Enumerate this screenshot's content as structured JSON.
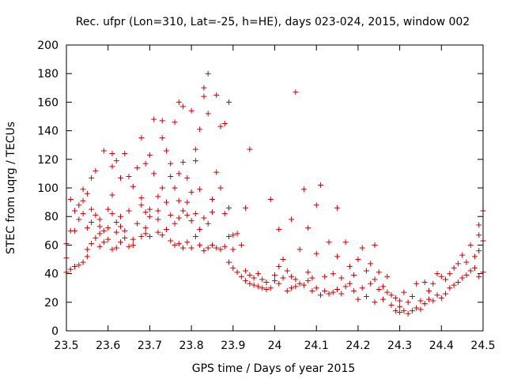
{
  "chart_data": {
    "type": "scatter",
    "title": "Rec. ufpr (Lon=310, Lat=-25, h=HE), days 023-024, 2015, window 002",
    "xlabel": "GPS time / Days of year 2015",
    "ylabel": "STEC from uqrg / TECUs",
    "xlim": [
      23.5,
      24.5
    ],
    "ylim": [
      0,
      200
    ],
    "xticks": [
      "23.5",
      "23.6",
      "23.7",
      "23.8",
      "23.9",
      "24",
      "24.1",
      "24.2",
      "24.3",
      "24.4",
      "24.5"
    ],
    "yticks": [
      "0",
      "20",
      "40",
      "60",
      "80",
      "100",
      "120",
      "140",
      "160",
      "180",
      "200"
    ],
    "grid": false,
    "marker": "plus",
    "color": "#cc0000",
    "points": [
      [
        23.5,
        41
      ],
      [
        23.5,
        51
      ],
      [
        23.5,
        61
      ],
      [
        23.51,
        43
      ],
      [
        23.51,
        70
      ],
      [
        23.51,
        92
      ],
      [
        23.52,
        45
      ],
      [
        23.52,
        70
      ],
      [
        23.52,
        84
      ],
      [
        23.53,
        88
      ],
      [
        23.53,
        46
      ],
      [
        23.53,
        78
      ],
      [
        23.54,
        48
      ],
      [
        23.54,
        82
      ],
      [
        23.54,
        91
      ],
      [
        23.54,
        99
      ],
      [
        23.55,
        52
      ],
      [
        23.55,
        57
      ],
      [
        23.55,
        72
      ],
      [
        23.55,
        96
      ],
      [
        23.56,
        61
      ],
      [
        23.56,
        76
      ],
      [
        23.56,
        85
      ],
      [
        23.56,
        107
      ],
      [
        23.57,
        65
      ],
      [
        23.57,
        81
      ],
      [
        23.57,
        112
      ],
      [
        23.58,
        59
      ],
      [
        23.58,
        68
      ],
      [
        23.58,
        73
      ],
      [
        23.58,
        78
      ],
      [
        23.59,
        62
      ],
      [
        23.59,
        70
      ],
      [
        23.59,
        126
      ],
      [
        23.6,
        64
      ],
      [
        23.6,
        72
      ],
      [
        23.6,
        85
      ],
      [
        23.61,
        57
      ],
      [
        23.61,
        82
      ],
      [
        23.61,
        95
      ],
      [
        23.61,
        115
      ],
      [
        23.61,
        124
      ],
      [
        23.62,
        58
      ],
      [
        23.62,
        69
      ],
      [
        23.62,
        76
      ],
      [
        23.62,
        119
      ],
      [
        23.63,
        62
      ],
      [
        23.63,
        73
      ],
      [
        23.63,
        80
      ],
      [
        23.63,
        107
      ],
      [
        23.64,
        65
      ],
      [
        23.64,
        70
      ],
      [
        23.64,
        124
      ],
      [
        23.65,
        59
      ],
      [
        23.65,
        84
      ],
      [
        23.65,
        108
      ],
      [
        23.66,
        60
      ],
      [
        23.66,
        64
      ],
      [
        23.66,
        101
      ],
      [
        23.67,
        75
      ],
      [
        23.67,
        114
      ],
      [
        23.68,
        66
      ],
      [
        23.68,
        88
      ],
      [
        23.68,
        93
      ],
      [
        23.68,
        135
      ],
      [
        23.69,
        68
      ],
      [
        23.69,
        72
      ],
      [
        23.69,
        83
      ],
      [
        23.69,
        117
      ],
      [
        23.7,
        66
      ],
      [
        23.7,
        80
      ],
      [
        23.7,
        85
      ],
      [
        23.7,
        123
      ],
      [
        23.71,
        110
      ],
      [
        23.71,
        148
      ],
      [
        23.72,
        69
      ],
      [
        23.72,
        78
      ],
      [
        23.72,
        84
      ],
      [
        23.72,
        94
      ],
      [
        23.73,
        67
      ],
      [
        23.73,
        100
      ],
      [
        23.73,
        135
      ],
      [
        23.73,
        147
      ],
      [
        23.74,
        71
      ],
      [
        23.74,
        90
      ],
      [
        23.74,
        126
      ],
      [
        23.75,
        63
      ],
      [
        23.75,
        81
      ],
      [
        23.75,
        108
      ],
      [
        23.75,
        117
      ],
      [
        23.76,
        60
      ],
      [
        23.76,
        75
      ],
      [
        23.76,
        100
      ],
      [
        23.76,
        146
      ],
      [
        23.77,
        61
      ],
      [
        23.77,
        79
      ],
      [
        23.77,
        91
      ],
      [
        23.77,
        110
      ],
      [
        23.77,
        160
      ],
      [
        23.78,
        58
      ],
      [
        23.78,
        84
      ],
      [
        23.78,
        118
      ],
      [
        23.78,
        157
      ],
      [
        23.79,
        62
      ],
      [
        23.79,
        81
      ],
      [
        23.79,
        90
      ],
      [
        23.79,
        107
      ],
      [
        23.8,
        58
      ],
      [
        23.8,
        77
      ],
      [
        23.8,
        97
      ],
      [
        23.8,
        154
      ],
      [
        23.81,
        66
      ],
      [
        23.81,
        82
      ],
      [
        23.81,
        119
      ],
      [
        23.81,
        127
      ],
      [
        23.82,
        60
      ],
      [
        23.82,
        71
      ],
      [
        23.82,
        99
      ],
      [
        23.82,
        141
      ],
      [
        23.83,
        56
      ],
      [
        23.83,
        79
      ],
      [
        23.83,
        164
      ],
      [
        23.83,
        170
      ],
      [
        23.84,
        58
      ],
      [
        23.84,
        75
      ],
      [
        23.84,
        152
      ],
      [
        23.84,
        180
      ],
      [
        23.85,
        60
      ],
      [
        23.85,
        83
      ],
      [
        23.85,
        92
      ],
      [
        23.86,
        58
      ],
      [
        23.86,
        111
      ],
      [
        23.86,
        165
      ],
      [
        23.87,
        57
      ],
      [
        23.87,
        100
      ],
      [
        23.87,
        143
      ],
      [
        23.88,
        59
      ],
      [
        23.88,
        82
      ],
      [
        23.88,
        145
      ],
      [
        23.89,
        48
      ],
      [
        23.89,
        66
      ],
      [
        23.89,
        86
      ],
      [
        23.89,
        160
      ],
      [
        23.9,
        44
      ],
      [
        23.9,
        57
      ],
      [
        23.9,
        67
      ],
      [
        23.91,
        41
      ],
      [
        23.91,
        68
      ],
      [
        23.92,
        38
      ],
      [
        23.92,
        60
      ],
      [
        23.93,
        35
      ],
      [
        23.93,
        42
      ],
      [
        23.93,
        86
      ],
      [
        23.94,
        33
      ],
      [
        23.94,
        39
      ],
      [
        23.94,
        127
      ],
      [
        23.95,
        32
      ],
      [
        23.95,
        37
      ],
      [
        23.96,
        31
      ],
      [
        23.96,
        40
      ],
      [
        23.97,
        30
      ],
      [
        23.97,
        36
      ],
      [
        23.98,
        29
      ],
      [
        23.98,
        34
      ],
      [
        23.99,
        30
      ],
      [
        23.99,
        92
      ],
      [
        24.0,
        39
      ],
      [
        24.0,
        35
      ],
      [
        24.01,
        33
      ],
      [
        24.01,
        45
      ],
      [
        24.01,
        71
      ],
      [
        24.02,
        37
      ],
      [
        24.02,
        50
      ],
      [
        24.03,
        28
      ],
      [
        24.03,
        42
      ],
      [
        24.04,
        30
      ],
      [
        24.04,
        38
      ],
      [
        24.04,
        78
      ],
      [
        24.05,
        31
      ],
      [
        24.05,
        36
      ],
      [
        24.05,
        167
      ],
      [
        24.06,
        33
      ],
      [
        24.06,
        57
      ],
      [
        24.07,
        32
      ],
      [
        24.07,
        99
      ],
      [
        24.08,
        35
      ],
      [
        24.08,
        41
      ],
      [
        24.08,
        72
      ],
      [
        24.09,
        28
      ],
      [
        24.09,
        37
      ],
      [
        24.1,
        30
      ],
      [
        24.1,
        54
      ],
      [
        24.1,
        88
      ],
      [
        24.11,
        25
      ],
      [
        24.11,
        102
      ],
      [
        24.12,
        28
      ],
      [
        24.12,
        38
      ],
      [
        24.13,
        26
      ],
      [
        24.13,
        62
      ],
      [
        24.14,
        27
      ],
      [
        24.14,
        40
      ],
      [
        24.15,
        29
      ],
      [
        24.15,
        52
      ],
      [
        24.15,
        86
      ],
      [
        24.16,
        26
      ],
      [
        24.16,
        37
      ],
      [
        24.17,
        31
      ],
      [
        24.17,
        62
      ],
      [
        24.18,
        33
      ],
      [
        24.18,
        45
      ],
      [
        24.19,
        28
      ],
      [
        24.19,
        39
      ],
      [
        24.2,
        22
      ],
      [
        24.2,
        50
      ],
      [
        24.21,
        30
      ],
      [
        24.21,
        58
      ],
      [
        24.22,
        24
      ],
      [
        24.22,
        42
      ],
      [
        24.23,
        33
      ],
      [
        24.23,
        47
      ],
      [
        24.24,
        20
      ],
      [
        24.24,
        36
      ],
      [
        24.24,
        60
      ],
      [
        24.25,
        29
      ],
      [
        24.25,
        41
      ],
      [
        24.26,
        22
      ],
      [
        24.26,
        31
      ],
      [
        24.27,
        27
      ],
      [
        24.27,
        38
      ],
      [
        24.28,
        18
      ],
      [
        24.28,
        25
      ],
      [
        24.29,
        14
      ],
      [
        24.29,
        23
      ],
      [
        24.3,
        13
      ],
      [
        24.3,
        17
      ],
      [
        24.3,
        21
      ],
      [
        24.31,
        14
      ],
      [
        24.31,
        27
      ],
      [
        24.32,
        12
      ],
      [
        24.32,
        20
      ],
      [
        24.33,
        14
      ],
      [
        24.33,
        24
      ],
      [
        24.34,
        16
      ],
      [
        24.34,
        33
      ],
      [
        24.35,
        15
      ],
      [
        24.35,
        21
      ],
      [
        24.36,
        19
      ],
      [
        24.36,
        34
      ],
      [
        24.37,
        22
      ],
      [
        24.37,
        28
      ],
      [
        24.38,
        21
      ],
      [
        24.38,
        33
      ],
      [
        24.39,
        25
      ],
      [
        24.39,
        40
      ],
      [
        24.4,
        23
      ],
      [
        24.4,
        38
      ],
      [
        24.41,
        26
      ],
      [
        24.41,
        36
      ],
      [
        24.42,
        30
      ],
      [
        24.42,
        40
      ],
      [
        24.43,
        32
      ],
      [
        24.43,
        44
      ],
      [
        24.44,
        34
      ],
      [
        24.44,
        47
      ],
      [
        24.45,
        37
      ],
      [
        24.45,
        53
      ],
      [
        24.46,
        39
      ],
      [
        24.46,
        48
      ],
      [
        24.47,
        42
      ],
      [
        24.47,
        60
      ],
      [
        24.48,
        44
      ],
      [
        24.48,
        52
      ],
      [
        24.49,
        38
      ],
      [
        24.49,
        56
      ],
      [
        24.49,
        67
      ],
      [
        24.49,
        74
      ],
      [
        24.5,
        41
      ],
      [
        24.5,
        63
      ],
      [
        24.5,
        84
      ]
    ]
  }
}
